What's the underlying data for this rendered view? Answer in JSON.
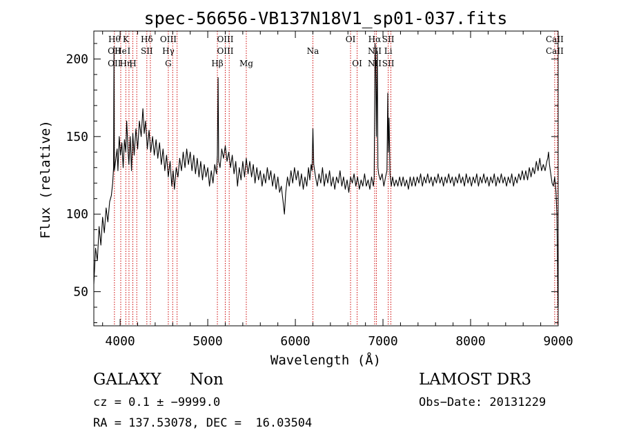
{
  "chart_data": {
    "type": "line",
    "title": "spec-56656-VB137N18V1_sp01-037.fits",
    "xlabel": "Wavelength (Å)",
    "ylabel": "Flux (relative)",
    "xlim": [
      3700,
      9000
    ],
    "ylim": [
      28,
      218
    ],
    "xticks": [
      4000,
      5000,
      6000,
      7000,
      8000,
      9000
    ],
    "yticks": [
      50,
      100,
      150,
      200
    ],
    "x_tick_labels": [
      "4000",
      "5000",
      "6000",
      "7000",
      "8000",
      "9000"
    ],
    "y_tick_labels": [
      "50",
      "100",
      "150",
      "200"
    ],
    "series": [
      {
        "name": "flux",
        "points": [
          [
            3700,
            55
          ],
          [
            3720,
            78
          ],
          [
            3740,
            70
          ],
          [
            3760,
            92
          ],
          [
            3780,
            80
          ],
          [
            3800,
            98
          ],
          [
            3820,
            88
          ],
          [
            3840,
            104
          ],
          [
            3860,
            95
          ],
          [
            3880,
            108
          ],
          [
            3900,
            112
          ],
          [
            3915,
            120
          ],
          [
            3925,
            130
          ],
          [
            3930,
            208
          ],
          [
            3935,
            128
          ],
          [
            3950,
            135
          ],
          [
            3965,
            142
          ],
          [
            3975,
            128
          ],
          [
            3990,
            150
          ],
          [
            4005,
            138
          ],
          [
            4020,
            146
          ],
          [
            4035,
            130
          ],
          [
            4050,
            148
          ],
          [
            4065,
            140
          ],
          [
            4075,
            160
          ],
          [
            4090,
            142
          ],
          [
            4100,
            132
          ],
          [
            4115,
            150
          ],
          [
            4130,
            128
          ],
          [
            4145,
            152
          ],
          [
            4160,
            138
          ],
          [
            4180,
            155
          ],
          [
            4200,
            142
          ],
          [
            4220,
            160
          ],
          [
            4240,
            150
          ],
          [
            4260,
            168
          ],
          [
            4275,
            152
          ],
          [
            4290,
            160
          ],
          [
            4310,
            142
          ],
          [
            4330,
            154
          ],
          [
            4350,
            140
          ],
          [
            4370,
            150
          ],
          [
            4390,
            138
          ],
          [
            4410,
            148
          ],
          [
            4430,
            136
          ],
          [
            4450,
            146
          ],
          [
            4470,
            132
          ],
          [
            4490,
            142
          ],
          [
            4510,
            128
          ],
          [
            4530,
            138
          ],
          [
            4550,
            124
          ],
          [
            4570,
            134
          ],
          [
            4590,
            118
          ],
          [
            4605,
            128
          ],
          [
            4620,
            116
          ],
          [
            4640,
            130
          ],
          [
            4660,
            124
          ],
          [
            4680,
            136
          ],
          [
            4700,
            128
          ],
          [
            4720,
            140
          ],
          [
            4740,
            130
          ],
          [
            4760,
            142
          ],
          [
            4780,
            132
          ],
          [
            4800,
            140
          ],
          [
            4820,
            128
          ],
          [
            4840,
            138
          ],
          [
            4860,
            126
          ],
          [
            4880,
            136
          ],
          [
            4900,
            124
          ],
          [
            4920,
            134
          ],
          [
            4940,
            122
          ],
          [
            4960,
            132
          ],
          [
            4980,
            124
          ],
          [
            5000,
            130
          ],
          [
            5020,
            118
          ],
          [
            5040,
            128
          ],
          [
            5060,
            120
          ],
          [
            5080,
            132
          ],
          [
            5100,
            126
          ],
          [
            5110,
            138
          ],
          [
            5118,
            188
          ],
          [
            5125,
            134
          ],
          [
            5140,
            130
          ],
          [
            5160,
            142
          ],
          [
            5180,
            136
          ],
          [
            5200,
            144
          ],
          [
            5220,
            134
          ],
          [
            5240,
            140
          ],
          [
            5260,
            130
          ],
          [
            5280,
            138
          ],
          [
            5300,
            126
          ],
          [
            5320,
            134
          ],
          [
            5340,
            118
          ],
          [
            5360,
            130
          ],
          [
            5380,
            122
          ],
          [
            5400,
            134
          ],
          [
            5420,
            124
          ],
          [
            5440,
            136
          ],
          [
            5460,
            126
          ],
          [
            5480,
            134
          ],
          [
            5500,
            124
          ],
          [
            5520,
            132
          ],
          [
            5540,
            120
          ],
          [
            5560,
            130
          ],
          [
            5580,
            122
          ],
          [
            5600,
            128
          ],
          [
            5620,
            118
          ],
          [
            5640,
            126
          ],
          [
            5660,
            120
          ],
          [
            5680,
            130
          ],
          [
            5700,
            122
          ],
          [
            5720,
            128
          ],
          [
            5740,
            118
          ],
          [
            5760,
            126
          ],
          [
            5780,
            116
          ],
          [
            5800,
            124
          ],
          [
            5820,
            114
          ],
          [
            5840,
            118
          ],
          [
            5860,
            108
          ],
          [
            5875,
            100
          ],
          [
            5890,
            114
          ],
          [
            5910,
            124
          ],
          [
            5930,
            118
          ],
          [
            5950,
            128
          ],
          [
            5970,
            120
          ],
          [
            5990,
            130
          ],
          [
            6010,
            122
          ],
          [
            6030,
            128
          ],
          [
            6050,
            118
          ],
          [
            6070,
            126
          ],
          [
            6090,
            116
          ],
          [
            6110,
            124
          ],
          [
            6130,
            118
          ],
          [
            6150,
            130
          ],
          [
            6165,
            122
          ],
          [
            6180,
            132
          ],
          [
            6190,
            128
          ],
          [
            6200,
            155
          ],
          [
            6210,
            132
          ],
          [
            6230,
            124
          ],
          [
            6250,
            118
          ],
          [
            6270,
            126
          ],
          [
            6290,
            120
          ],
          [
            6310,
            130
          ],
          [
            6330,
            118
          ],
          [
            6350,
            126
          ],
          [
            6370,
            120
          ],
          [
            6390,
            128
          ],
          [
            6410,
            118
          ],
          [
            6430,
            124
          ],
          [
            6450,
            116
          ],
          [
            6470,
            124
          ],
          [
            6490,
            120
          ],
          [
            6510,
            128
          ],
          [
            6530,
            118
          ],
          [
            6550,
            124
          ],
          [
            6570,
            116
          ],
          [
            6590,
            122
          ],
          [
            6610,
            114
          ],
          [
            6630,
            124
          ],
          [
            6650,
            120
          ],
          [
            6670,
            126
          ],
          [
            6690,
            118
          ],
          [
            6710,
            124
          ],
          [
            6730,
            116
          ],
          [
            6750,
            122
          ],
          [
            6770,
            118
          ],
          [
            6790,
            126
          ],
          [
            6810,
            118
          ],
          [
            6830,
            122
          ],
          [
            6850,
            116
          ],
          [
            6870,
            124
          ],
          [
            6890,
            118
          ],
          [
            6900,
            124
          ],
          [
            6910,
            210
          ],
          [
            6918,
            195
          ],
          [
            6925,
            150
          ],
          [
            6935,
            205
          ],
          [
            6942,
            130
          ],
          [
            6950,
            126
          ],
          [
            6970,
            122
          ],
          [
            6990,
            126
          ],
          [
            7010,
            118
          ],
          [
            7030,
            124
          ],
          [
            7045,
            128
          ],
          [
            7055,
            178
          ],
          [
            7062,
            140
          ],
          [
            7070,
            162
          ],
          [
            7080,
            126
          ],
          [
            7095,
            118
          ],
          [
            7110,
            124
          ],
          [
            7130,
            118
          ],
          [
            7150,
            122
          ],
          [
            7170,
            118
          ],
          [
            7190,
            124
          ],
          [
            7210,
            118
          ],
          [
            7230,
            124
          ],
          [
            7250,
            118
          ],
          [
            7270,
            122
          ],
          [
            7290,
            116
          ],
          [
            7310,
            124
          ],
          [
            7330,
            118
          ],
          [
            7350,
            124
          ],
          [
            7370,
            118
          ],
          [
            7390,
            124
          ],
          [
            7410,
            120
          ],
          [
            7430,
            126
          ],
          [
            7450,
            118
          ],
          [
            7470,
            124
          ],
          [
            7490,
            120
          ],
          [
            7510,
            126
          ],
          [
            7530,
            120
          ],
          [
            7550,
            124
          ],
          [
            7570,
            118
          ],
          [
            7590,
            124
          ],
          [
            7610,
            120
          ],
          [
            7630,
            126
          ],
          [
            7650,
            120
          ],
          [
            7670,
            124
          ],
          [
            7690,
            118
          ],
          [
            7710,
            124
          ],
          [
            7730,
            120
          ],
          [
            7750,
            126
          ],
          [
            7770,
            120
          ],
          [
            7790,
            124
          ],
          [
            7810,
            118
          ],
          [
            7830,
            124
          ],
          [
            7850,
            120
          ],
          [
            7870,
            126
          ],
          [
            7890,
            120
          ],
          [
            7910,
            124
          ],
          [
            7930,
            118
          ],
          [
            7950,
            126
          ],
          [
            7970,
            120
          ],
          [
            7990,
            124
          ],
          [
            8010,
            118
          ],
          [
            8030,
            124
          ],
          [
            8050,
            120
          ],
          [
            8070,
            126
          ],
          [
            8090,
            118
          ],
          [
            8110,
            124
          ],
          [
            8130,
            120
          ],
          [
            8150,
            126
          ],
          [
            8170,
            120
          ],
          [
            8190,
            124
          ],
          [
            8210,
            118
          ],
          [
            8230,
            124
          ],
          [
            8250,
            120
          ],
          [
            8270,
            126
          ],
          [
            8290,
            118
          ],
          [
            8310,
            124
          ],
          [
            8330,
            120
          ],
          [
            8350,
            126
          ],
          [
            8370,
            120
          ],
          [
            8390,
            124
          ],
          [
            8410,
            118
          ],
          [
            8430,
            124
          ],
          [
            8450,
            120
          ],
          [
            8470,
            126
          ],
          [
            8490,
            118
          ],
          [
            8510,
            124
          ],
          [
            8530,
            120
          ],
          [
            8550,
            126
          ],
          [
            8570,
            122
          ],
          [
            8590,
            128
          ],
          [
            8610,
            122
          ],
          [
            8630,
            128
          ],
          [
            8650,
            122
          ],
          [
            8670,
            130
          ],
          [
            8690,
            124
          ],
          [
            8710,
            130
          ],
          [
            8730,
            126
          ],
          [
            8750,
            134
          ],
          [
            8770,
            128
          ],
          [
            8790,
            136
          ],
          [
            8810,
            128
          ],
          [
            8830,
            132
          ],
          [
            8850,
            128
          ],
          [
            8870,
            134
          ],
          [
            8880,
            136
          ],
          [
            8890,
            140
          ],
          [
            8900,
            132
          ],
          [
            8915,
            126
          ],
          [
            8930,
            120
          ],
          [
            8945,
            118
          ],
          [
            8960,
            124
          ],
          [
            8975,
            114
          ],
          [
            8985,
            100
          ],
          [
            8992,
            70
          ],
          [
            8998,
            40
          ]
        ]
      }
    ],
    "line_markers": [
      {
        "wavelength": 3935,
        "top": "Hθ",
        "mid": "OII",
        "low": "OII"
      },
      {
        "wavelength": 4007,
        "mid": "He"
      },
      {
        "wavelength": 4065,
        "top": "K",
        "low": "Hη"
      },
      {
        "wavelength": 4101,
        "mid": "I"
      },
      {
        "wavelength": 4145,
        "low": "H"
      },
      {
        "wavelength": 4190
      },
      {
        "wavelength": 4305,
        "top": "Hδ",
        "mid": "SII"
      },
      {
        "wavelength": 4345
      },
      {
        "wavelength": 4550,
        "top": "OIII",
        "mid": "Hγ",
        "low": "G"
      },
      {
        "wavelength": 4600
      },
      {
        "wavelength": 4650
      },
      {
        "wavelength": 5110,
        "low": "Hβ"
      },
      {
        "wavelength": 5200,
        "top": "OIII",
        "mid": "OIII"
      },
      {
        "wavelength": 5245
      },
      {
        "wavelength": 5440,
        "low": "Mg"
      },
      {
        "wavelength": 6200,
        "mid": "Na"
      },
      {
        "wavelength": 6630,
        "top": "OI"
      },
      {
        "wavelength": 6705,
        "low": "OI"
      },
      {
        "wavelength": 6905,
        "top": "Hα",
        "mid": "NII",
        "low": "NII"
      },
      {
        "wavelength": 6925
      },
      {
        "wavelength": 7060,
        "top": "SII",
        "mid": "Li",
        "low": "SII"
      },
      {
        "wavelength": 7090
      },
      {
        "wavelength": 8960,
        "top": "CaII",
        "mid": "CaII"
      },
      {
        "wavelength": 8990
      }
    ],
    "line_color": "#cc0000"
  },
  "info": {
    "object_class": "GALAXY",
    "subclass": "Non",
    "survey": "LAMOST DR3",
    "cz": "cz = 0.1 ± −9999.0",
    "obs_date": "Obs−Date: 20131229",
    "radec": "RA = 137.53078, DEC =  16.03504"
  }
}
